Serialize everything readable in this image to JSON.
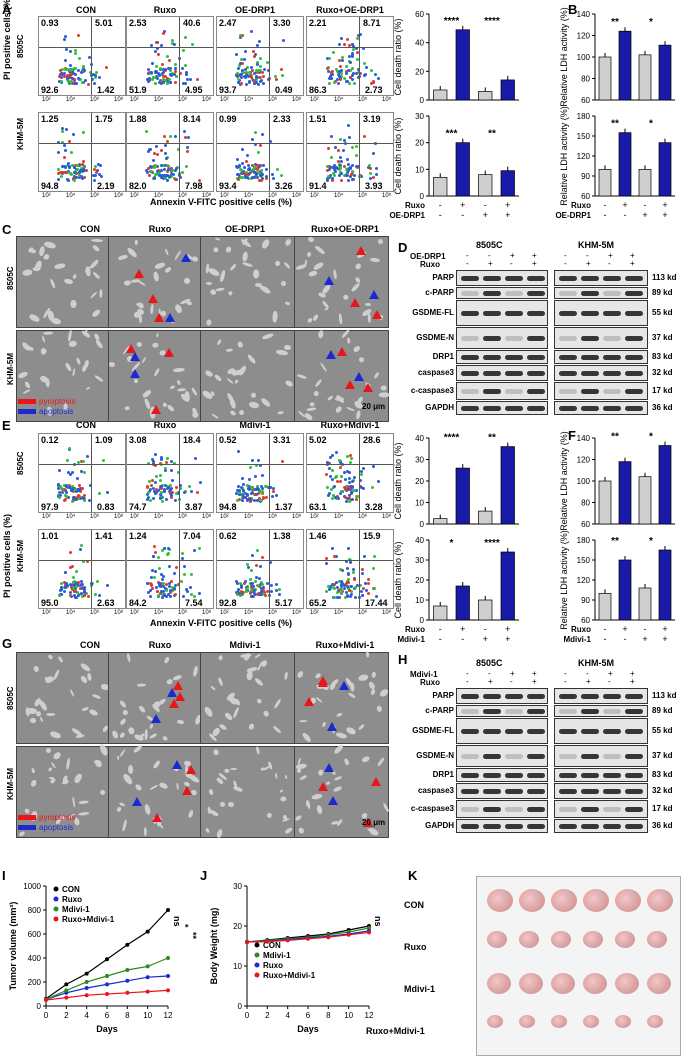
{
  "panel_letters": [
    "A",
    "B",
    "C",
    "D",
    "E",
    "F",
    "G",
    "H",
    "I",
    "J",
    "K"
  ],
  "flow_common": {
    "y_title": "PI positive cells (%)",
    "x_title": "Annexin V-FITC positive cells (%)",
    "row_labels": [
      "8505C",
      "KHM-5M"
    ],
    "x_ticks": [
      "10²",
      "10⁴",
      "10⁶",
      "10⁸"
    ]
  },
  "flow_A": {
    "conditions": [
      "CON",
      "Ruxo",
      "OE-DRP1",
      "Ruxo+OE-DRP1"
    ],
    "rows": [
      [
        [
          "0.93",
          "5.01",
          "92.6",
          "1.42"
        ],
        [
          "2.53",
          "40.6",
          "51.9",
          "4.95"
        ],
        [
          "2.47",
          "3.30",
          "93.7",
          "0.49"
        ],
        [
          "2.21",
          "8.71",
          "86.3",
          "2.73"
        ]
      ],
      [
        [
          "1.25",
          "1.75",
          "94.8",
          "2.19"
        ],
        [
          "1.88",
          "8.14",
          "82.0",
          "7.98"
        ],
        [
          "0.99",
          "2.33",
          "93.4",
          "3.26"
        ],
        [
          "1.51",
          "3.19",
          "91.4",
          "3.93"
        ]
      ]
    ]
  },
  "flow_E": {
    "conditions": [
      "CON",
      "Ruxo",
      "Mdivi-1",
      "Ruxo+Mdivi-1"
    ],
    "rows": [
      [
        [
          "0.12",
          "1.09",
          "97.9",
          "0.83"
        ],
        [
          "3.08",
          "18.4",
          "74.7",
          "3.87"
        ],
        [
          "0.52",
          "3.31",
          "94.8",
          "1.37"
        ],
        [
          "5.02",
          "28.6",
          "63.1",
          "3.28"
        ]
      ],
      [
        [
          "1.01",
          "1.41",
          "95.0",
          "2.63"
        ],
        [
          "1.24",
          "7.04",
          "84.2",
          "7.54"
        ],
        [
          "0.62",
          "1.38",
          "92.8",
          "5.17"
        ],
        [
          "1.46",
          "15.9",
          "65.2",
          "17.44"
        ]
      ]
    ]
  },
  "bar_A_top": {
    "ylabel": "Cell death ratio (%)",
    "yticks": [
      "0",
      "20",
      "40",
      "60"
    ],
    "ymax": 60,
    "values": [
      7,
      49,
      6,
      14
    ],
    "sig": [
      "****",
      "****"
    ]
  },
  "bar_A_bot": {
    "ylabel": "Cell death ratio (%)",
    "yticks": [
      "0",
      "10",
      "20",
      "30"
    ],
    "ymax": 30,
    "values": [
      7,
      20,
      8,
      9.5
    ],
    "sig": [
      "***",
      "**"
    ]
  },
  "bar_B_top": {
    "ylabel": "Relative LDH activity (%)",
    "yticks": [
      "60",
      "80",
      "100",
      "120",
      "140"
    ],
    "ymin": 60,
    "ymax": 140,
    "values": [
      100,
      124,
      102,
      111
    ],
    "sig": [
      "**",
      "*"
    ]
  },
  "bar_B_bot": {
    "ylabel": "Relative LDH activity (%)",
    "yticks": [
      "60",
      "90",
      "120",
      "150",
      "180"
    ],
    "ymin": 60,
    "ymax": 180,
    "values": [
      100,
      155,
      100,
      140
    ],
    "sig": [
      "**",
      "*"
    ]
  },
  "bar_E_top": {
    "ylabel": "Cell death ratio (%)",
    "yticks": [
      "0",
      "10",
      "20",
      "30",
      "40"
    ],
    "ymax": 40,
    "values": [
      2.5,
      26,
      6,
      36
    ],
    "sig": [
      "****",
      "**"
    ]
  },
  "bar_E_bot": {
    "ylabel": "Cell death ratio (%)",
    "yticks": [
      "0",
      "10",
      "20",
      "30",
      "40"
    ],
    "ymax": 40,
    "values": [
      7,
      17,
      10,
      34
    ],
    "sig": [
      "*",
      "****"
    ]
  },
  "bar_F_top": {
    "ylabel": "Relative LDH activity (%)",
    "yticks": [
      "60",
      "80",
      "100",
      "120",
      "140"
    ],
    "ymin": 60,
    "ymax": 140,
    "values": [
      100,
      118,
      104,
      133
    ],
    "sig": [
      "**",
      "*"
    ]
  },
  "bar_F_bot": {
    "ylabel": "Relative LDH activity (%)",
    "yticks": [
      "60",
      "90",
      "120",
      "150",
      "180"
    ],
    "ymin": 60,
    "ymax": 180,
    "values": [
      100,
      150,
      108,
      165
    ],
    "sig": [
      "**",
      "*"
    ]
  },
  "bar_colors": {
    "control": "#cfcfcf",
    "treated": "#1a1aa8"
  },
  "treat_rows_A": {
    "row1": "Ruxo",
    "row2": "OE-DRP1",
    "signs1": [
      "-",
      "+",
      "-",
      "+"
    ],
    "signs2": [
      "-",
      "-",
      "+",
      "+"
    ]
  },
  "treat_rows_E": {
    "row1": "Ruxo",
    "row2": "Mdivi-1",
    "signs1": [
      "-",
      "+",
      "-",
      "+"
    ],
    "signs2": [
      "-",
      "-",
      "+",
      "+"
    ]
  },
  "micro_C": {
    "conditions": [
      "CON",
      "Ruxo",
      "OE-DRP1",
      "Ruxo+OE-DRP1"
    ],
    "rows": [
      "8505C",
      "KHM-5M"
    ],
    "legend": [
      "pyroptosis",
      "apoptosis"
    ],
    "scale": "20 μm"
  },
  "micro_G": {
    "conditions": [
      "CON",
      "Ruxo",
      "Mdivi-1",
      "Ruxo+Mdivi-1"
    ],
    "rows": [
      "8505C",
      "KHM-5M"
    ],
    "legend": [
      "pyroptosis",
      "apoptosis"
    ],
    "scale": "20 μm"
  },
  "arrow_colors": {
    "pyroptosis": "#e8151b",
    "apoptosis": "#1a2ad0"
  },
  "blot_D": {
    "cells": [
      "8505C",
      "KHM-5M"
    ],
    "treat1": "OE-DRP1",
    "treat2": "Ruxo",
    "signs1": [
      "-",
      "-",
      "+",
      "+"
    ],
    "signs2": [
      "-",
      "+",
      "-",
      "+"
    ],
    "proteins": [
      "PARP",
      "c-PARP",
      "GSDME-FL",
      "GSDME-N",
      "DRP1",
      "caspase3",
      "c-caspase3",
      "GAPDH"
    ],
    "sizes": [
      "113 kd",
      "89 kd",
      "55 kd",
      "37 kd",
      "83 kd",
      "32 kd",
      "17 kd",
      "36 kd"
    ]
  },
  "blot_H": {
    "cells": [
      "8505C",
      "KHM-5M"
    ],
    "treat1": "Mdivi-1",
    "treat2": "Ruxo",
    "signs1": [
      "-",
      "-",
      "+",
      "+"
    ],
    "signs2": [
      "-",
      "+",
      "-",
      "+"
    ],
    "proteins": [
      "PARP",
      "c-PARP",
      "GSDME-FL",
      "GSDME-N",
      "DRP1",
      "caspase3",
      "c-caspase3",
      "GAPDH"
    ],
    "sizes": [
      "113 kd",
      "89 kd",
      "55 kd",
      "37 kd",
      "83 kd",
      "32 kd",
      "17 kd",
      "36 kd"
    ]
  },
  "chart_data": [
    {
      "type": "line",
      "panel": "I",
      "ylabel": "Tumor volume (mm³)",
      "xlabel": "Days",
      "x": [
        0,
        2,
        4,
        6,
        8,
        10,
        12
      ],
      "xlim": [
        0,
        12
      ],
      "ylim": [
        0,
        1000
      ],
      "yticks": [
        "0",
        "200",
        "400",
        "600",
        "800",
        "1000"
      ],
      "xticks": [
        "0",
        "2",
        "4",
        "6",
        "8",
        "10",
        "12"
      ],
      "series": [
        {
          "name": "CON",
          "color": "#000000",
          "values": [
            60,
            180,
            270,
            390,
            510,
            620,
            800
          ]
        },
        {
          "name": "Ruxo",
          "color": "#1a2ad0",
          "values": [
            55,
            110,
            150,
            180,
            210,
            240,
            250
          ]
        },
        {
          "name": "Mdivi-1",
          "color": "#2f8a1e",
          "values": [
            55,
            130,
            200,
            250,
            300,
            330,
            400
          ]
        },
        {
          "name": "Ruxo+Mdivi-1",
          "color": "#e8151b",
          "values": [
            50,
            70,
            90,
            100,
            110,
            120,
            130
          ]
        }
      ],
      "sig": [
        "ns",
        "*",
        "**"
      ]
    },
    {
      "type": "line",
      "panel": "J",
      "ylabel": "Body Weight (mg)",
      "xlabel": "Days",
      "x": [
        0,
        2,
        4,
        6,
        8,
        10,
        12
      ],
      "xlim": [
        0,
        12
      ],
      "ylim": [
        0,
        30
      ],
      "yticks": [
        "0",
        "10",
        "20",
        "30"
      ],
      "xticks": [
        "0",
        "2",
        "4",
        "6",
        "8",
        "10",
        "12"
      ],
      "series": [
        {
          "name": "CON",
          "color": "#000000",
          "values": [
            16,
            16.5,
            17,
            17.5,
            18,
            19,
            20
          ]
        },
        {
          "name": "Mdivi-1",
          "color": "#2f8a1e",
          "values": [
            16,
            16.4,
            16.8,
            17.2,
            17.8,
            18.5,
            19.5
          ]
        },
        {
          "name": "Ruxo",
          "color": "#1a2ad0",
          "values": [
            16,
            16.2,
            16.6,
            17,
            17.4,
            18,
            18.8
          ]
        },
        {
          "name": "Ruxo+Mdivi-1",
          "color": "#e8151b",
          "values": [
            16,
            16.1,
            16.4,
            16.8,
            17.2,
            17.8,
            18.4
          ]
        }
      ],
      "sig": [
        "ns"
      ]
    }
  ],
  "tumors": {
    "rows": [
      "CON",
      "Ruxo",
      "Mdivi-1",
      "Ruxo+Mdivi-1"
    ]
  }
}
